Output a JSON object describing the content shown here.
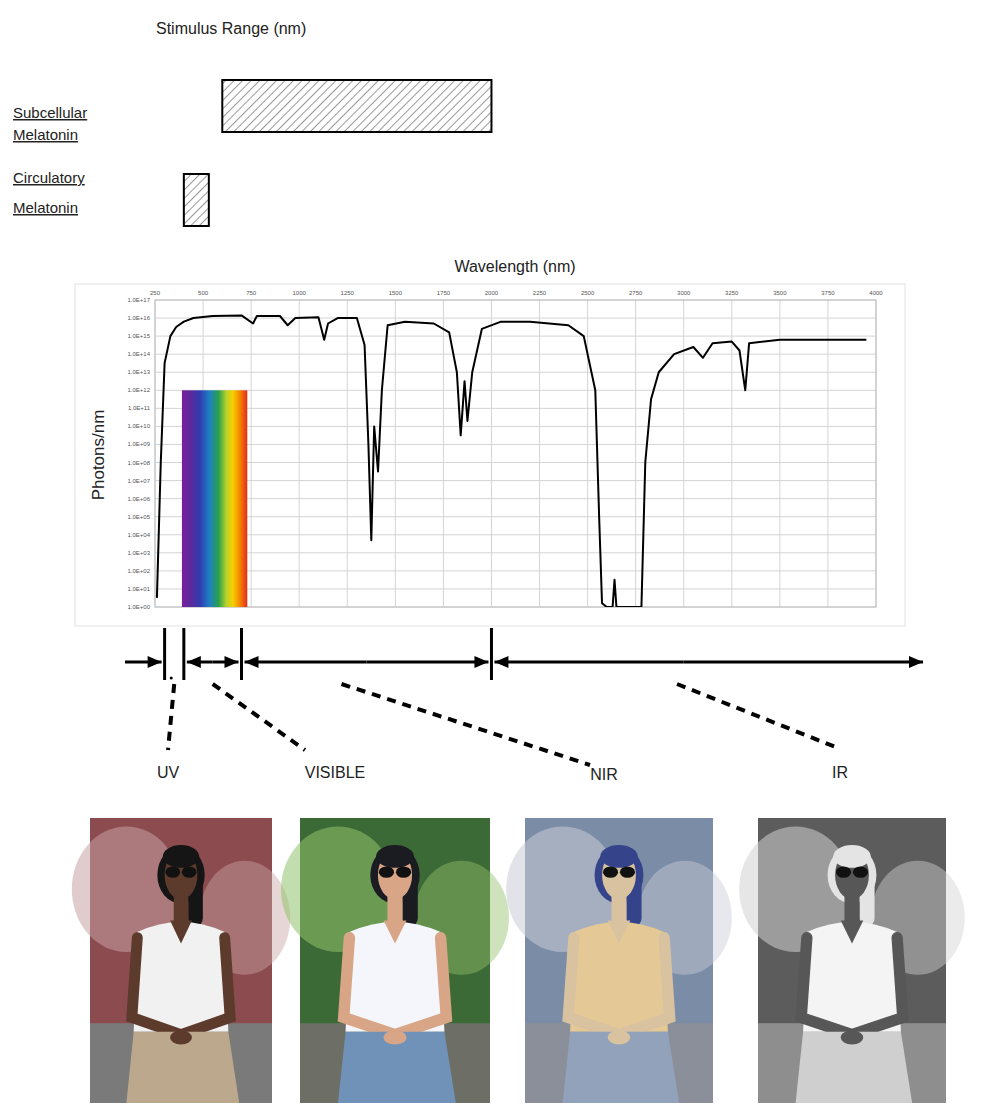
{
  "stimulus_range": {
    "title": "Stimulus Range (nm)",
    "items": [
      {
        "label": [
          "Subcellular",
          "Melatonin"
        ],
        "range": [
          600,
          2000
        ]
      },
      {
        "label": [
          "Circulatory",
          "Melatonin"
        ],
        "range": [
          400,
          530
        ]
      }
    ]
  },
  "chart_data": {
    "type": "line",
    "x_label": "Wavelength (nm)",
    "y_label": "Photons/nm",
    "log": "y",
    "grid": true,
    "color": "#000000",
    "xlim": [
      250,
      4000
    ],
    "ylim": [
      1,
      1e+17
    ],
    "xticks": [
      250,
      500,
      750,
      1000,
      1250,
      1500,
      1750,
      2000,
      2250,
      2500,
      2750,
      3000,
      3250,
      3500,
      3750,
      4000
    ],
    "yticks": [
      {
        "value": 1,
        "label": "1.0E+00"
      },
      {
        "value": 10.0,
        "label": "1.0E+01"
      },
      {
        "value": 100.0,
        "label": "1.0E+02"
      },
      {
        "value": 1000.0,
        "label": "1.0E+03"
      },
      {
        "value": 10000.0,
        "label": "1.0E+04"
      },
      {
        "value": 100000.0,
        "label": "1.0E+05"
      },
      {
        "value": 1000000.0,
        "label": "1.0E+06"
      },
      {
        "value": 10000000.0,
        "label": "1.0E+07"
      },
      {
        "value": 100000000.0,
        "label": "1.0E+08"
      },
      {
        "value": 1000000000.0,
        "label": "1.0E+09"
      },
      {
        "value": 10000000000.0,
        "label": "1.0E+10"
      },
      {
        "value": 100000000000.0,
        "label": "1.0E+11"
      },
      {
        "value": 1000000000000.0,
        "label": "1.0E+12"
      },
      {
        "value": 10000000000000.0,
        "label": "1.0E+13"
      },
      {
        "value": 100000000000000.0,
        "label": "1.0E+14"
      },
      {
        "value": 1000000000000000.0,
        "label": "1.0E+15"
      },
      {
        "value": 1e+16,
        "label": "1.0E+16"
      },
      {
        "value": 1e+17,
        "label": "1.0E+17"
      }
    ],
    "x": [
      260,
      280,
      300,
      330,
      360,
      400,
      450,
      550,
      700,
      760,
      780,
      900,
      940,
      980,
      1100,
      1130,
      1150,
      1200,
      1300,
      1340,
      1360,
      1375,
      1390,
      1410,
      1430,
      1460,
      1550,
      1700,
      1780,
      1820,
      1840,
      1860,
      1875,
      1900,
      1950,
      2050,
      2200,
      2400,
      2480,
      2540,
      2560,
      2575,
      2600,
      2630,
      2640,
      2650,
      2780,
      2800,
      2830,
      2870,
      2950,
      3050,
      3100,
      3150,
      3250,
      3290,
      3320,
      3340,
      3500,
      3750,
      3950
    ],
    "values": [
      3.2,
      100000000.0,
      32000000000000.0,
      1000000000000000.0,
      3200000000000000.0,
      6300000000000000.0,
      1e+16,
      1.3e+16,
      1.4e+16,
      5000000000000000.0,
      1.3e+16,
      1.3e+16,
      4000000000000000.0,
      1e+16,
      1.1e+16,
      630000000000000.0,
      5000000000000000.0,
      1e+16,
      1e+16,
      320000000000000.0,
      1000000000.0,
      5000,
      10000000000.0,
      32000000.0,
      1000000000000.0,
      4000000000000000.0,
      6300000000000000.0,
      5000000000000000.0,
      1600000000000000.0,
      10000000000000.0,
      3200000000.0,
      3200000000000.0,
      20000000000.0,
      10000000000000.0,
      2500000000000000.0,
      6300000000000000.0,
      6300000000000000.0,
      4000000000000000.0,
      1000000000000000.0,
      1000000000000.0,
      100000.0,
      1.6,
      1,
      1,
      32,
      1,
      1,
      100000000.0,
      320000000000.0,
      10000000000000.0,
      100000000000000.0,
      250000000000000.0,
      63000000000000.0,
      400000000000000.0,
      500000000000000.0,
      160000000000000.0,
      1000000000000.0,
      400000000000000.0,
      630000000000000.0,
      630000000000000.0,
      630000000000000.0
    ],
    "visible_band": {
      "x": [
        390,
        730
      ],
      "y": [
        1,
        1000000000000.0
      ]
    }
  },
  "bands": {
    "boundaries": [
      300,
      400,
      700,
      2000
    ],
    "labels": [
      "UV",
      "VISIBLE",
      "NIR",
      "IR"
    ]
  }
}
